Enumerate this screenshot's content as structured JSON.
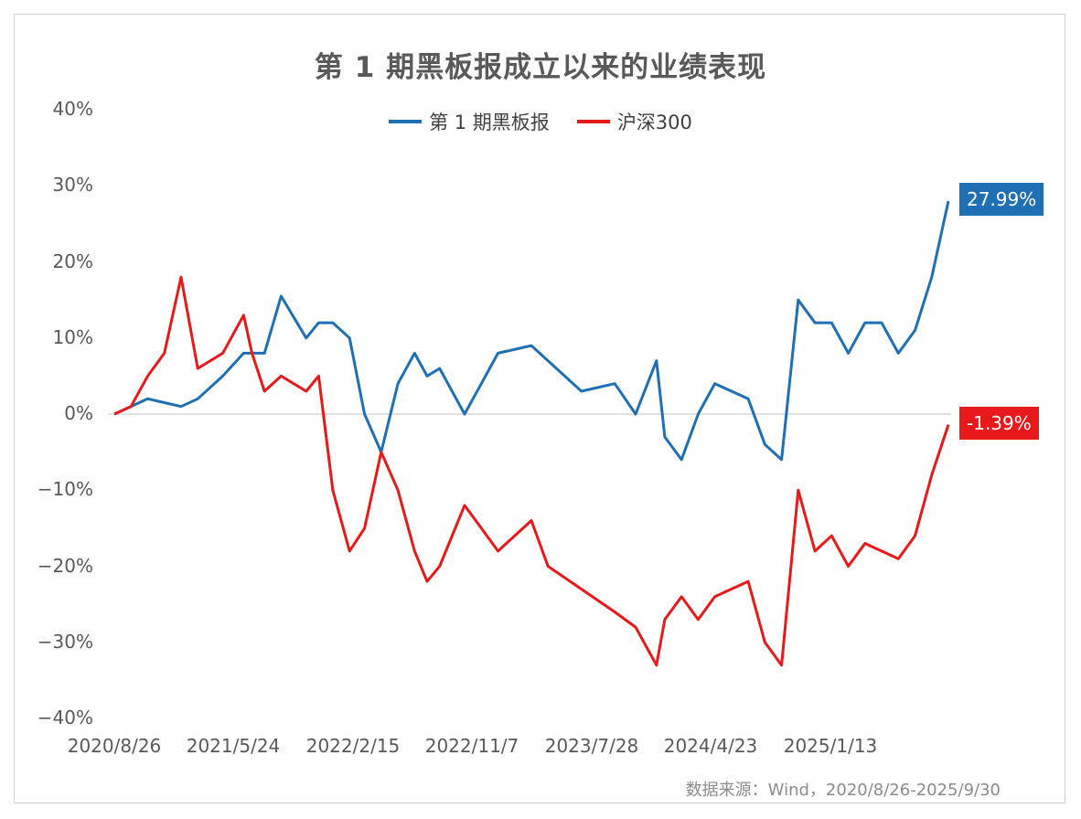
{
  "chart_data": {
    "type": "line",
    "title": "第 1 期黑板报成立以来的业绩表现",
    "xlabel": "",
    "ylabel": "",
    "ylim": [
      -0.4,
      0.4
    ],
    "yticks": [
      "40%",
      "30%",
      "20%",
      "10%",
      "0%",
      "−10%",
      "−20%",
      "−30%",
      "−40%"
    ],
    "ytick_values": [
      0.4,
      0.3,
      0.2,
      0.1,
      0.0,
      -0.1,
      -0.2,
      -0.3,
      -0.4
    ],
    "xticks": [
      "2020/8/26",
      "2021/5/24",
      "2022/2/15",
      "2022/11/7",
      "2023/7/28",
      "2024/4/23",
      "2025/1/13"
    ],
    "xtick_positions": [
      0.0,
      0.133,
      0.273,
      0.412,
      0.551,
      0.692,
      0.832
    ],
    "x": [
      0.0,
      0.02,
      0.04,
      0.06,
      0.08,
      0.1,
      0.13,
      0.155,
      0.165,
      0.18,
      0.2,
      0.23,
      0.245,
      0.262,
      0.282,
      0.3,
      0.32,
      0.34,
      0.36,
      0.375,
      0.39,
      0.42,
      0.44,
      0.46,
      0.5,
      0.52,
      0.56,
      0.6,
      0.625,
      0.65,
      0.66,
      0.68,
      0.7,
      0.72,
      0.76,
      0.78,
      0.8,
      0.82,
      0.84,
      0.86,
      0.88,
      0.9,
      0.92,
      0.94,
      0.96,
      0.98,
      1.0
    ],
    "series": [
      {
        "name": "第 1 期黑板报",
        "color": "#1F6FB4",
        "end_label": "27.99%",
        "values": [
          0.0,
          0.01,
          0.02,
          0.015,
          0.01,
          0.02,
          0.05,
          0.08,
          0.08,
          0.08,
          0.155,
          0.1,
          0.12,
          0.12,
          0.1,
          0.0,
          -0.05,
          0.04,
          0.08,
          0.05,
          0.06,
          0.0,
          0.04,
          0.08,
          0.09,
          0.07,
          0.03,
          0.04,
          0.0,
          0.07,
          -0.03,
          -0.06,
          0.0,
          0.04,
          0.02,
          -0.04,
          -0.06,
          0.15,
          0.12,
          0.12,
          0.08,
          0.12,
          0.12,
          0.08,
          0.11,
          0.18,
          0.2799
        ]
      },
      {
        "name": "沪深300",
        "color": "#E8191A",
        "end_label": "-1.39%",
        "values": [
          0.0,
          0.01,
          0.05,
          0.08,
          0.18,
          0.06,
          0.08,
          0.13,
          0.08,
          0.03,
          0.05,
          0.03,
          0.05,
          -0.1,
          -0.18,
          -0.15,
          -0.05,
          -0.1,
          -0.18,
          -0.22,
          -0.2,
          -0.12,
          -0.15,
          -0.18,
          -0.14,
          -0.2,
          -0.23,
          -0.26,
          -0.28,
          -0.33,
          -0.27,
          -0.24,
          -0.27,
          -0.24,
          -0.22,
          -0.3,
          -0.33,
          -0.1,
          -0.18,
          -0.16,
          -0.2,
          -0.17,
          -0.18,
          -0.19,
          -0.16,
          -0.08,
          -0.0139
        ]
      }
    ],
    "legend": [
      "第 1 期黑板报",
      "沪深300"
    ],
    "legend_position": "top-center",
    "grid": false
  },
  "source_note": "数据来源：Wind，2020/8/26-2025/9/30"
}
